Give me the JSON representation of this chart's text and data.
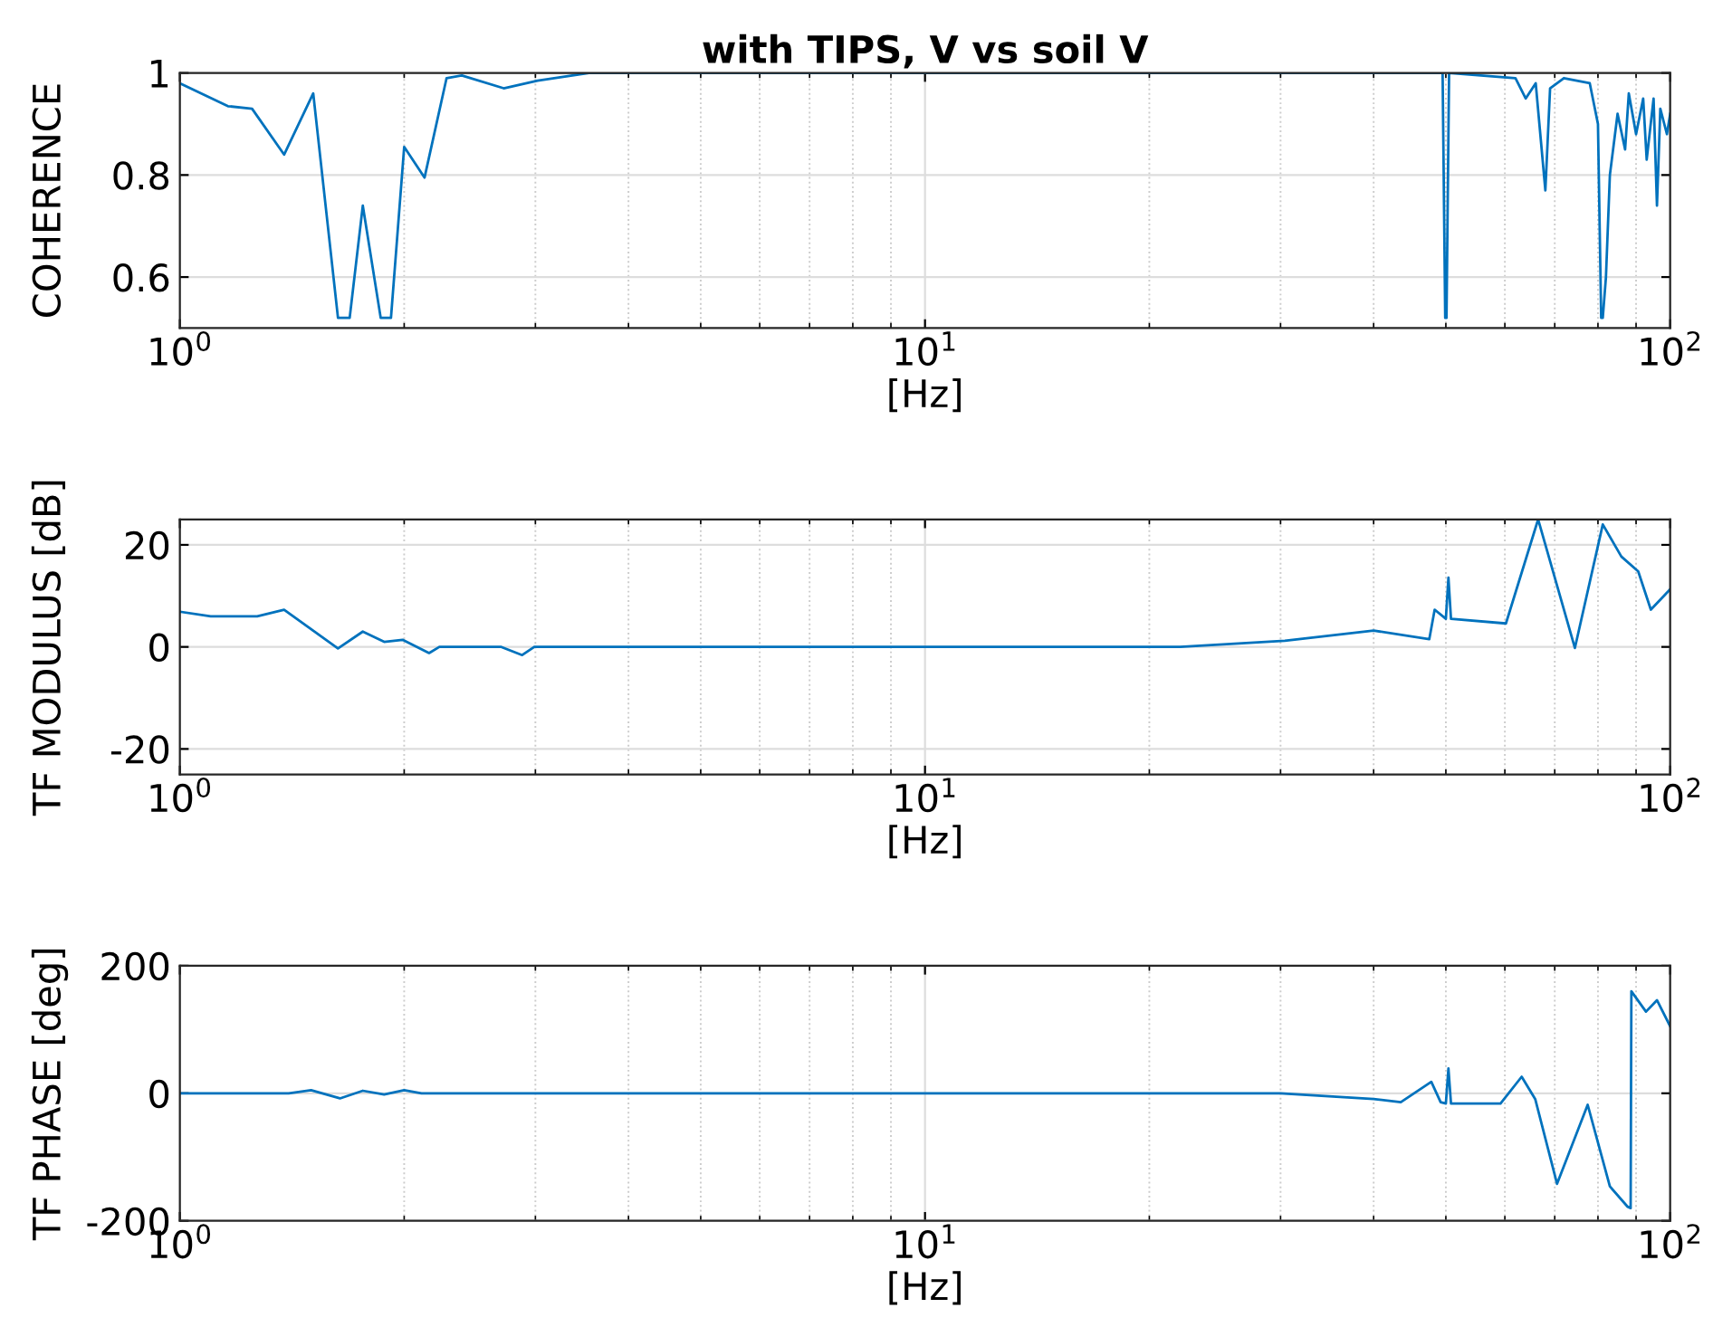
{
  "chart_data": [
    {
      "type": "line",
      "title": "with TIPS, V vs soil V",
      "xlabel": "[Hz]",
      "ylabel": "COHERENCE",
      "log": "x",
      "grid": true,
      "xlim": [
        1,
        100
      ],
      "ylim": [
        0.5,
        1
      ],
      "xticks": [
        {
          "value": 1,
          "label": "10$^{0}$"
        },
        {
          "value": 10,
          "label": "10$^{1}$"
        },
        {
          "value": 100,
          "label": "10$^{2}$"
        }
      ],
      "yticks": [
        0.6,
        0.8,
        1
      ],
      "series": [
        {
          "color": "#0072bd",
          "x": [
            1,
            1.16,
            1.25,
            1.38,
            1.51,
            1.63,
            1.69,
            1.76,
            1.86,
            1.92,
            2.0,
            2.13,
            2.28,
            2.39,
            2.72,
            3.02,
            3.54,
            10,
            30,
            49.5,
            49.9,
            50.1,
            50.5,
            62,
            64,
            66,
            68,
            69,
            72,
            78,
            80,
            80.8,
            81.2,
            82,
            83,
            85,
            87,
            88,
            90,
            92,
            93,
            95,
            96,
            97,
            99,
            100
          ],
          "values": [
            0.98,
            0.935,
            0.93,
            0.84,
            0.96,
            0.52,
            0.52,
            0.74,
            0.52,
            0.52,
            0.855,
            0.795,
            0.99,
            0.995,
            0.97,
            0.985,
            1.0,
            1.0,
            1.0,
            1.0,
            0.52,
            0.52,
            1.0,
            0.99,
            0.95,
            0.98,
            0.77,
            0.97,
            0.99,
            0.98,
            0.9,
            0.52,
            0.52,
            0.6,
            0.8,
            0.92,
            0.85,
            0.96,
            0.88,
            0.95,
            0.83,
            0.95,
            0.74,
            0.93,
            0.88,
            0.92
          ]
        }
      ]
    },
    {
      "type": "line",
      "xlabel": "[Hz]",
      "ylabel": "TF MODULUS [dB]",
      "log": "x",
      "grid": true,
      "xlim": [
        1,
        100
      ],
      "ylim": [
        -25,
        25
      ],
      "xticks": [
        {
          "value": 1,
          "label": "10$^{0}$"
        },
        {
          "value": 10,
          "label": "10$^{1}$"
        },
        {
          "value": 100,
          "label": "10$^{2}$"
        }
      ],
      "yticks": [
        -20,
        0,
        20
      ],
      "series": [
        {
          "color": "#0072bd",
          "x": [
            1,
            1.1,
            1.27,
            1.38,
            1.63,
            1.76,
            1.88,
            1.99,
            2.16,
            2.23,
            2.7,
            2.88,
            2.99,
            10,
            22,
            30.4,
            40,
            47.5,
            48.3,
            50,
            50.4,
            50.8,
            60.2,
            66.5,
            74.5,
            81.2,
            86,
            90.6,
            94.2,
            100
          ],
          "values": [
            6.9,
            6.0,
            6.0,
            7.3,
            -0.3,
            3.0,
            1.0,
            1.4,
            -1.2,
            0,
            0,
            -1.6,
            0,
            0,
            0,
            1.2,
            3.2,
            1.5,
            7.3,
            5.5,
            13.6,
            5.5,
            4.6,
            25,
            -0.2,
            24,
            17.7,
            14.8,
            7.3,
            11.3
          ]
        }
      ]
    },
    {
      "type": "line",
      "xlabel": "[Hz]",
      "ylabel": "TF PHASE [deg]",
      "log": "x",
      "grid": true,
      "xlim": [
        1,
        100
      ],
      "ylim": [
        -200,
        200
      ],
      "xticks": [
        {
          "value": 1,
          "label": "10$^{0}$"
        },
        {
          "value": 10,
          "label": "10$^{1}$"
        },
        {
          "value": 100,
          "label": "10$^{2}$"
        }
      ],
      "yticks": [
        -200,
        0,
        200
      ],
      "series": [
        {
          "color": "#0072bd",
          "x": [
            1,
            1.4,
            1.5,
            1.64,
            1.76,
            1.88,
            2.0,
            2.11,
            10,
            30,
            40,
            43.5,
            47.8,
            49.2,
            50,
            50.4,
            50.8,
            59.2,
            63.2,
            65.9,
            70.5,
            77.5,
            83,
            87.7,
            88.5,
            88.7,
            92.8,
            96,
            100
          ],
          "values": [
            0,
            0,
            5,
            -8,
            4,
            -2,
            5,
            0,
            0,
            0,
            -9,
            -14,
            18,
            -14,
            -16,
            39,
            -16,
            -16,
            26,
            -9,
            -142,
            -18,
            -146,
            -178,
            -180,
            160,
            128,
            146,
            105
          ]
        }
      ]
    }
  ]
}
